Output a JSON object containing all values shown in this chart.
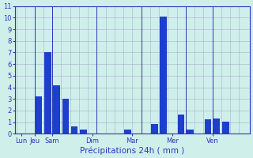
{
  "xlabel": "Précipitations 24h ( mm )",
  "background_color": "#cff0ea",
  "bar_color": "#1c3fcc",
  "grid_color": "#aaaacc",
  "axis_label_color": "#3333bb",
  "tick_color": "#3333bb",
  "ylim": [
    0,
    11
  ],
  "yticks": [
    0,
    1,
    2,
    3,
    4,
    5,
    6,
    7,
    8,
    9,
    10,
    11
  ],
  "bar_values": [
    0,
    0,
    3.2,
    7.0,
    4.2,
    3.0,
    0.65,
    0.4,
    0,
    0,
    0,
    0,
    0.35,
    0,
    0,
    0.85,
    10.1,
    0,
    1.65,
    0.4,
    0,
    1.25,
    1.3,
    1.05,
    0,
    0
  ],
  "day_tick_labels": [
    "Lun",
    "Jeu",
    "Sam",
    "Dim",
    "Mar",
    "Mer",
    "Ven"
  ]
}
